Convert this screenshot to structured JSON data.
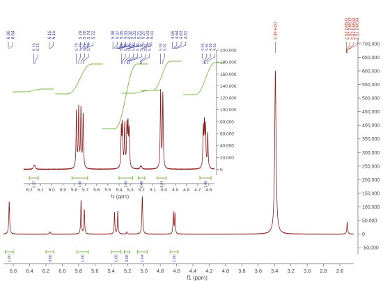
{
  "chart_data": [
    {
      "type": "line",
      "name_hint": "main-spectrum",
      "xlabel": "f1 (ppm)",
      "ylabel": "",
      "xlim": [
        6.72,
        2.43
      ],
      "ylim": [
        -75000,
        720000
      ],
      "x_reversed": true,
      "x_ticks": [
        "6.6",
        "6.4",
        "6.2",
        "6.0",
        "5.8",
        "5.6",
        "5.4",
        "5.2",
        "5.0",
        "4.8",
        "4.6",
        "4.4",
        "4.2",
        "4.0",
        "3.8",
        "3.6",
        "3.4",
        "3.2",
        "3.0",
        "2.8",
        "2.6"
      ],
      "y_ticks": [
        "700,000",
        "650,000",
        "600,000",
        "550,000",
        "500,000",
        "450,000",
        "400,000",
        "350,000",
        "300,000",
        "250,000",
        "200,000",
        "150,000",
        "100,000",
        "50,000",
        "0",
        "-50,000"
      ],
      "peaks": [
        {
          "ppm": 6.65,
          "height": 120000,
          "width": 0.006
        },
        {
          "ppm": 6.15,
          "height": 8000,
          "width": 0.008
        },
        {
          "ppm": 5.77,
          "height": 125000,
          "width": 0.005
        },
        {
          "ppm": 5.73,
          "height": 90000,
          "width": 0.005
        },
        {
          "ppm": 5.36,
          "height": 80000,
          "width": 0.005
        },
        {
          "ppm": 5.32,
          "height": 85000,
          "width": 0.005
        },
        {
          "ppm": 5.21,
          "height": 8000,
          "width": 0.006
        },
        {
          "ppm": 5.02,
          "height": 140000,
          "width": 0.006
        },
        {
          "ppm": 4.64,
          "height": 80000,
          "width": 0.005
        },
        {
          "ppm": 4.62,
          "height": 75000,
          "width": 0.005
        },
        {
          "ppm": 3.39,
          "height": 600000,
          "width": 0.01
        },
        {
          "ppm": 2.51,
          "height": 45000,
          "width": 0.006
        }
      ],
      "peak_labels": [
        "6.66",
        "6.64",
        "6.16",
        "6.15",
        "5.78",
        "5.76",
        "5.74",
        "5.72",
        "5.38",
        "5.37",
        "5.35",
        "5.33",
        "5.32",
        "5.31",
        "5.21",
        "5.20",
        "5.03",
        "5.01",
        "4.65",
        "4.64",
        "4.63",
        "4.61"
      ],
      "solvent_labels": [
        "3.39 H2O",
        "2.52 DMSO",
        "2.52 DMSO",
        "2.51 DMSO",
        "2.51 DMSO"
      ],
      "integrals": [
        {
          "from": 6.7,
          "to": 6.6,
          "value": "1.00"
        },
        {
          "from": 6.2,
          "to": 6.1,
          "value": "0.06"
        },
        {
          "from": 5.82,
          "to": 5.68,
          "value": "1.00"
        },
        {
          "from": 5.4,
          "to": 5.28,
          "value": "1.09"
        },
        {
          "from": 5.24,
          "to": 5.18,
          "value": "0.08"
        },
        {
          "from": 5.08,
          "to": 4.96,
          "value": "1.04"
        },
        {
          "from": 4.68,
          "to": 4.58,
          "value": "1.00"
        }
      ]
    },
    {
      "type": "line",
      "name_hint": "inset-spectrum",
      "xlabel": "f1 (ppm)",
      "ylabel": "",
      "xlim": [
        6.25,
        4.55
      ],
      "ylim": [
        -10000,
        200000
      ],
      "x_reversed": true,
      "x_ticks": [
        "6.2",
        "6.1",
        "6.0",
        "5.9",
        "5.8",
        "5.7",
        "5.6",
        "5.5",
        "5.4",
        "5.3",
        "5.2",
        "5.1",
        "5.0",
        "4.9",
        "4.8",
        "4.7",
        "4.6"
      ],
      "y_ticks": [
        "200,000",
        "180,000",
        "160,000",
        "140,000",
        "120,000",
        "100,000",
        "80,000",
        "60,000",
        "40,000",
        "20,000",
        "0"
      ],
      "peaks": [
        {
          "ppm": 6.16,
          "height": 5000,
          "width": 0.006
        },
        {
          "ppm": 6.15,
          "height": 5000,
          "width": 0.006
        },
        {
          "ppm": 5.78,
          "height": 95000,
          "width": 0.004
        },
        {
          "ppm": 5.76,
          "height": 100000,
          "width": 0.004
        },
        {
          "ppm": 5.74,
          "height": 98000,
          "width": 0.004
        },
        {
          "ppm": 5.72,
          "height": 90000,
          "width": 0.004
        },
        {
          "ppm": 5.38,
          "height": 65000,
          "width": 0.004
        },
        {
          "ppm": 5.37,
          "height": 70000,
          "width": 0.004
        },
        {
          "ppm": 5.35,
          "height": 72000,
          "width": 0.004
        },
        {
          "ppm": 5.33,
          "height": 68000,
          "width": 0.004
        },
        {
          "ppm": 5.32,
          "height": 66000,
          "width": 0.004
        },
        {
          "ppm": 5.31,
          "height": 60000,
          "width": 0.004
        },
        {
          "ppm": 5.21,
          "height": 4000,
          "width": 0.005
        },
        {
          "ppm": 5.2,
          "height": 4000,
          "width": 0.005
        },
        {
          "ppm": 5.03,
          "height": 130000,
          "width": 0.004
        },
        {
          "ppm": 5.01,
          "height": 125000,
          "width": 0.004
        },
        {
          "ppm": 4.65,
          "height": 65000,
          "width": 0.004
        },
        {
          "ppm": 4.64,
          "height": 68000,
          "width": 0.004
        },
        {
          "ppm": 4.63,
          "height": 66000,
          "width": 0.004
        },
        {
          "ppm": 4.61,
          "height": 58000,
          "width": 0.004
        }
      ],
      "peak_labels": [
        "6.16",
        "6.15",
        "5.78",
        "5.76",
        "5.74",
        "5.72",
        "5.38",
        "5.37",
        "5.35",
        "5.33",
        "5.32",
        "5.31",
        "5.21",
        "5.20",
        "5.03",
        "5.01",
        "4.65",
        "4.64",
        "4.63",
        "4.61"
      ],
      "integrals": [
        {
          "from": 6.2,
          "to": 6.12,
          "value": "0.07"
        },
        {
          "from": 5.82,
          "to": 5.68,
          "value": "1.06"
        },
        {
          "from": 5.4,
          "to": 5.28,
          "value": "1.09"
        },
        {
          "from": 5.23,
          "to": 5.17,
          "value": "0.08"
        },
        {
          "from": 5.06,
          "to": 4.98,
          "value": "1.04"
        },
        {
          "from": 4.68,
          "to": 4.58,
          "value": "1.08"
        }
      ]
    }
  ],
  "colors": {
    "spectrum": "#8b1a1a",
    "labels": "#3a3aa0",
    "solvent": "#c0392b",
    "integral": "#7ab648",
    "axis": "#666666",
    "text": "#444444"
  }
}
